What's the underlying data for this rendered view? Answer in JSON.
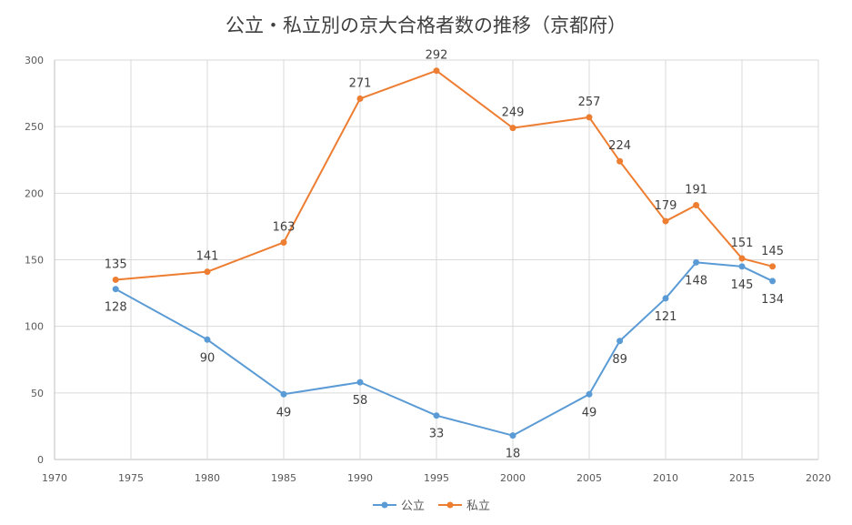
{
  "chart_data": {
    "type": "line",
    "title": "公立・私立別の京大合格者数の推移（京都府）",
    "xlabel": "",
    "ylabel": "",
    "xlim": [
      1970,
      2020
    ],
    "ylim": [
      0,
      300
    ],
    "x_ticks": [
      1970,
      1975,
      1980,
      1985,
      1990,
      1995,
      2000,
      2005,
      2010,
      2015,
      2020
    ],
    "y_ticks": [
      0,
      50,
      100,
      150,
      200,
      250,
      300
    ],
    "grid": true,
    "legend_position": "bottom",
    "series": [
      {
        "name": "公立",
        "color": "#5b9bd5",
        "label_position": "below",
        "x": [
          1974,
          1980,
          1985,
          1990,
          1995,
          2000,
          2005,
          2007,
          2010,
          2012,
          2015,
          2017
        ],
        "values": [
          128,
          90,
          49,
          58,
          33,
          18,
          49,
          89,
          121,
          148,
          145,
          134
        ]
      },
      {
        "name": "私立",
        "color": "#ed7d31",
        "label_position": "above",
        "x": [
          1974,
          1980,
          1985,
          1990,
          1995,
          2000,
          2005,
          2007,
          2010,
          2012,
          2015,
          2017
        ],
        "values": [
          135,
          141,
          163,
          271,
          292,
          249,
          257,
          224,
          179,
          191,
          151,
          145
        ]
      }
    ]
  }
}
